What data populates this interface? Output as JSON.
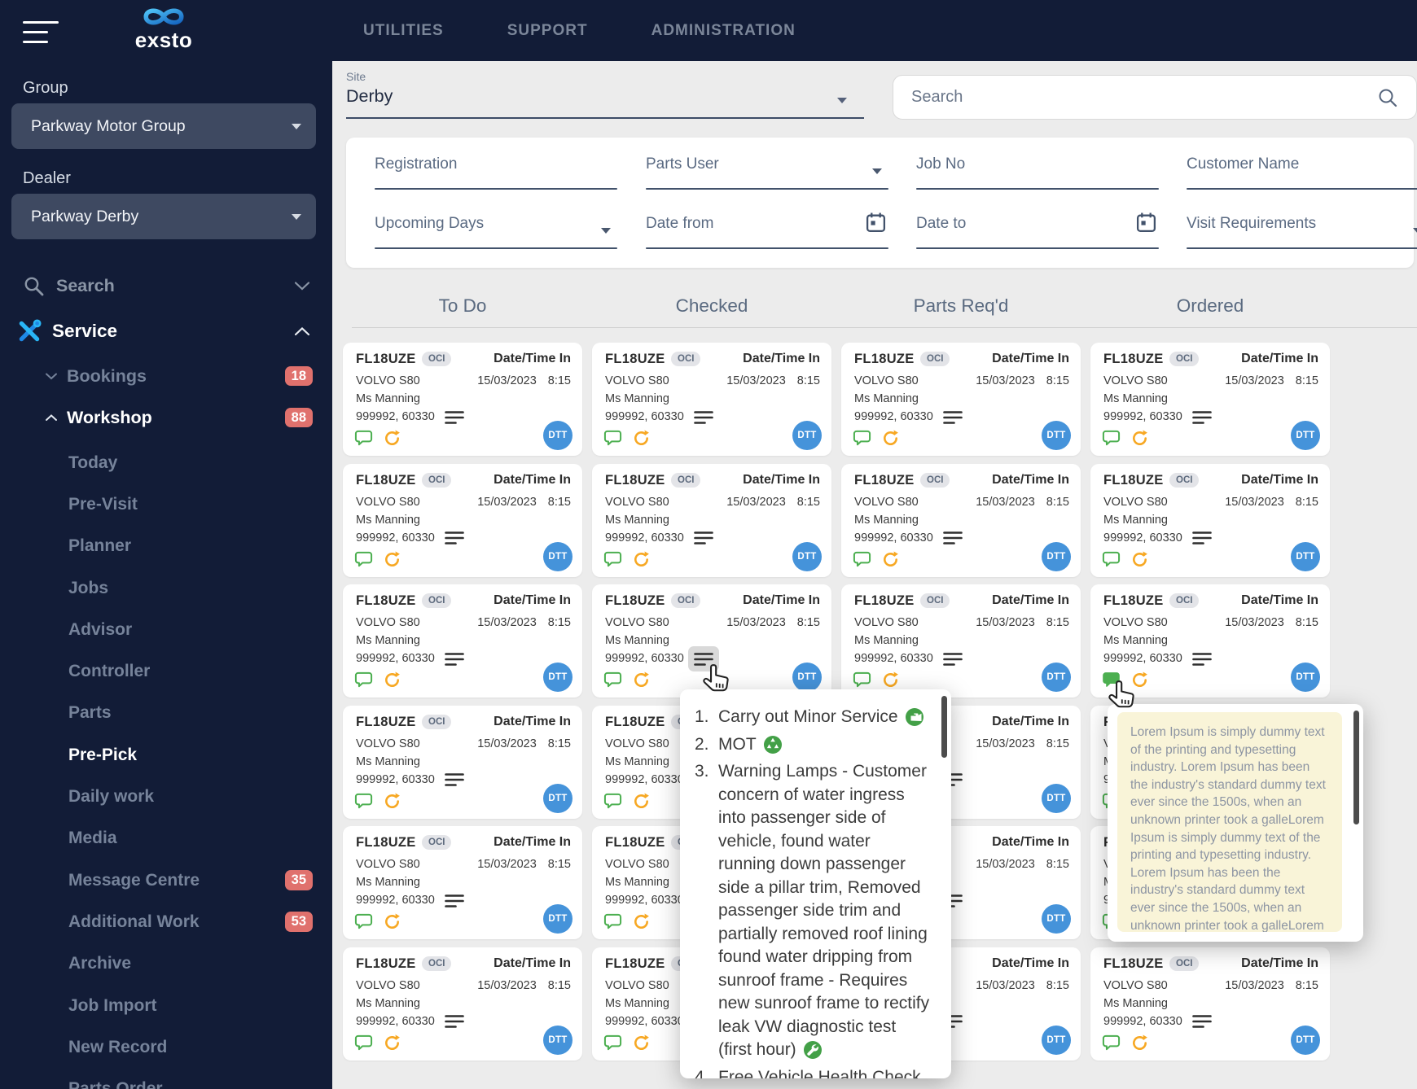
{
  "navbar": {
    "logo": "exsto",
    "menu": [
      {
        "label": "UTILITIES"
      },
      {
        "label": "SUPPORT"
      },
      {
        "label": "ADMINISTRATION"
      }
    ]
  },
  "sidebar": {
    "group_label": "Group",
    "group_value": "Parkway Motor Group",
    "dealer_label": "Dealer",
    "dealer_value": "Parkway Derby",
    "search_label": "Search",
    "service_label": "Service",
    "bookings": {
      "label": "Bookings",
      "badge": "18"
    },
    "workshop": {
      "label": "Workshop",
      "badge": "88"
    },
    "workshop_items": [
      {
        "label": "Today"
      },
      {
        "label": "Pre-Visit"
      },
      {
        "label": "Planner"
      },
      {
        "label": "Jobs"
      },
      {
        "label": "Advisor"
      },
      {
        "label": "Controller"
      },
      {
        "label": "Parts"
      },
      {
        "label": "Pre-Pick",
        "active": true
      },
      {
        "label": "Daily work"
      },
      {
        "label": "Media"
      },
      {
        "label": "Message Centre",
        "badge": "35"
      },
      {
        "label": "Additional Work",
        "badge": "53"
      },
      {
        "label": "Archive"
      },
      {
        "label": "Job Import"
      },
      {
        "label": "New Record"
      },
      {
        "label": "Parts Order",
        "clipped": true
      }
    ]
  },
  "main": {
    "site": {
      "label": "Site",
      "value": "Derby"
    },
    "search_placeholder": "Search",
    "filters": {
      "row1": [
        {
          "label": "Registration",
          "type": "text"
        },
        {
          "label": "Parts User",
          "type": "select"
        },
        {
          "label": "Job No",
          "type": "text"
        },
        {
          "label": "Customer Name",
          "type": "text"
        }
      ],
      "row2": [
        {
          "label": "Upcoming Days",
          "type": "select"
        },
        {
          "label": "Date from",
          "type": "date"
        },
        {
          "label": "Date to",
          "type": "date"
        },
        {
          "label": "Visit Requirements",
          "type": "select"
        }
      ]
    },
    "board": {
      "columns": [
        "To Do",
        "Checked",
        "Parts Req'd",
        "Ordered"
      ],
      "rows_per_column": 6,
      "card": {
        "registration": "FL18UZE",
        "badge": "OCI",
        "datetime_label": "Date/Time In",
        "model": "VOLVO S80",
        "customer": "Ms Manning",
        "job_numbers": "999992, 60330",
        "date": "15/03/2023",
        "time": "8:15",
        "dtt_label": "DTT"
      }
    },
    "jobs_popup": {
      "items": [
        {
          "number": "1.",
          "text": "Carry out Minor Service",
          "icon": "oil-service-icon"
        },
        {
          "number": "2.",
          "text": "MOT",
          "icon": "mot-icon"
        },
        {
          "number": "3.",
          "text": "Warning Lamps - Customer concern of water ingress into passenger side of vehicle, found water running down passenger side a pillar trim, Removed passenger side trim and partially removed roof lining found water dripping from sunroof frame - Requires new sunroof frame to rectify leak VW diagnostic test (first hour)",
          "icon": "repair-icon"
        },
        {
          "number": "4.",
          "text": "Free Vehicle Health Check",
          "icon": "health-check-icon"
        }
      ]
    },
    "note_tooltip": {
      "text": "Lorem Ipsum is simply dummy text of the printing and typesetting industry. Lorem Ipsum has been the industry's standard dummy text ever since the 1500s, when an unknown printer took a galleLorem Ipsum is simply dummy text of the printing and typesetting industry. Lorem Ipsum has been the industry's standard dummy text ever since the 1500s, when an unknown printer took a galleLorem Ipsum is simply"
    }
  },
  "colors": {
    "navy": "#121c37",
    "badge_red": "#e0716d",
    "accent_cyan": "#29b6f6",
    "green": "#43a047",
    "orange": "#f7a823",
    "dtt_blue": "#4593da",
    "tooltip_yellow": "#f9f4d8"
  }
}
